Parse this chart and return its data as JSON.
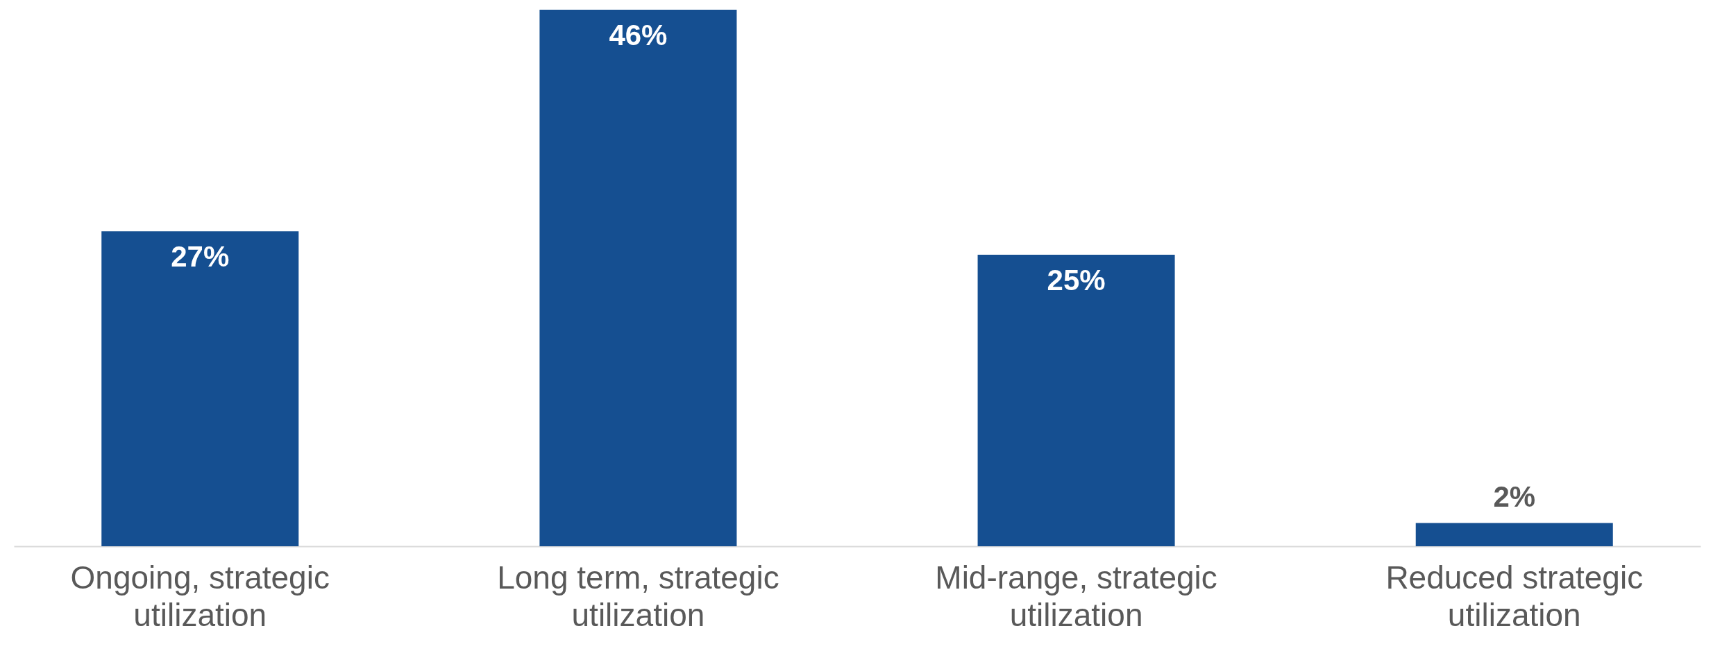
{
  "chart_data": {
    "type": "bar",
    "categories": [
      "Ongoing, strategic utilization",
      "Long term, strategic utilization",
      "Mid-range, strategic utilization",
      "Reduced strategic utilization"
    ],
    "values": [
      27,
      46,
      25,
      2
    ],
    "color": "#154f91",
    "value_labels": [
      "27%",
      "46%",
      "25%",
      "2%"
    ],
    "grid": false
  }
}
